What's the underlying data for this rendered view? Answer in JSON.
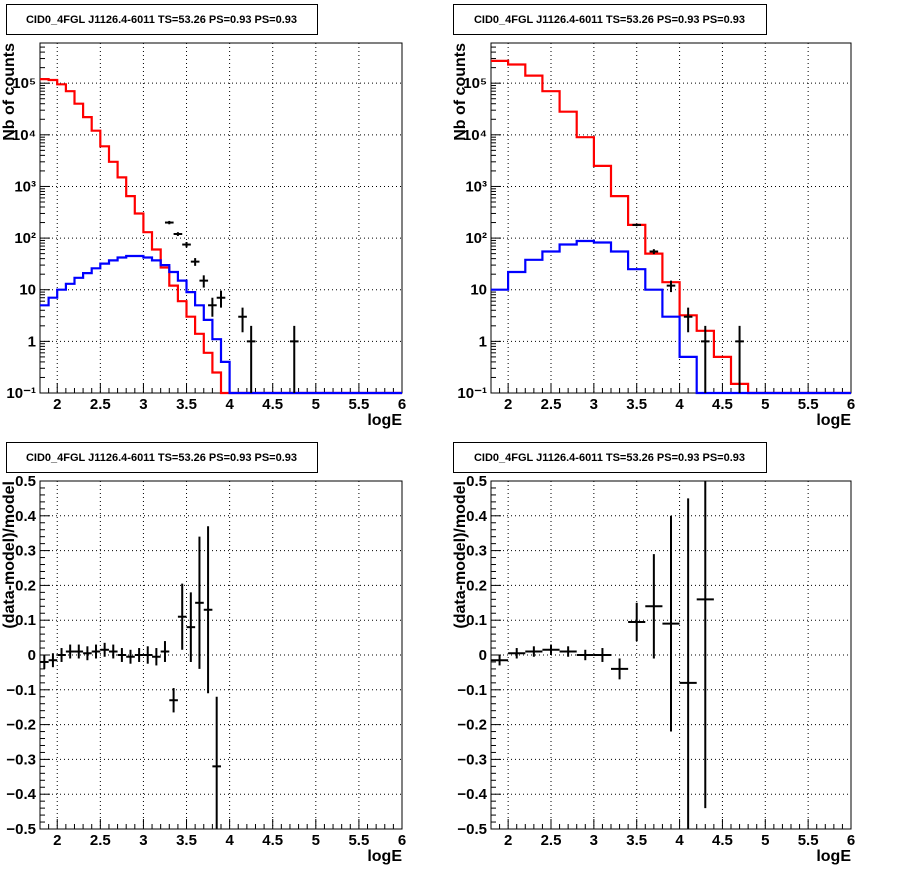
{
  "chart_data": [
    {
      "type": "line",
      "title": "CID0_4FGL J1126.4-6011 TS=53.26 PS=0.93 PS=0.93",
      "xlabel": "logE",
      "ylabel": "Nb of counts",
      "xlim": [
        1.8,
        6.0
      ],
      "ylim": [
        0.1,
        600000
      ],
      "log_y": true,
      "grid": true,
      "x_ticks": [
        "2",
        "2.5",
        "3",
        "3.5",
        "4",
        "4.5",
        "5",
        "5.5",
        "6"
      ],
      "y_ticks": [
        "10⁻¹",
        "1",
        "10",
        "10²",
        "10³",
        "10⁴",
        "10⁵"
      ],
      "bin_edges": [
        1.8,
        1.9,
        2.0,
        2.1,
        2.2,
        2.3,
        2.4,
        2.5,
        2.6,
        2.7,
        2.8,
        2.9,
        3.0,
        3.1,
        3.2,
        3.3,
        3.4,
        3.5,
        3.6,
        3.7,
        3.8,
        3.9,
        4.0,
        4.1,
        4.2,
        4.3,
        4.4,
        4.5,
        4.6,
        4.7,
        4.8,
        4.9,
        5.0,
        5.1,
        5.2,
        5.3,
        5.4,
        5.5,
        5.6,
        5.7,
        5.8,
        5.9,
        6.0
      ],
      "series": [
        {
          "color": "#ff0000",
          "values": [
            120000,
            115000,
            95000,
            70000,
            40000,
            22000,
            12000,
            6000,
            3000,
            1500,
            650,
            300,
            130,
            60,
            27,
            12,
            6,
            3,
            1.4,
            0.6,
            0.25,
            0.1,
            0.1,
            0.1,
            0.1,
            0.1,
            0.1,
            0.1,
            0.1,
            0.1,
            0.1,
            0.1,
            0.1,
            0.1,
            0.1,
            0.1,
            0.1,
            0.1,
            0.1,
            0.1,
            0.1,
            0.1
          ]
        },
        {
          "color": "#0000ff",
          "values": [
            5,
            7,
            10,
            13,
            17,
            21,
            26,
            32,
            37,
            42,
            45,
            45,
            42,
            37,
            30,
            22,
            15,
            9,
            5,
            2.6,
            1.1,
            0.4,
            0.1,
            0.1,
            0.1,
            0.1,
            0.1,
            0.1,
            0.1,
            0.1,
            0.1,
            0.1,
            0.1,
            0.1,
            0.1,
            0.1,
            0.1,
            0.1,
            0.1,
            0.1,
            0.1,
            0.1
          ]
        }
      ],
      "points": [
        {
          "x": 3.3,
          "y": 200,
          "lo": 185,
          "hi": 215
        },
        {
          "x": 3.4,
          "y": 120,
          "lo": 110,
          "hi": 130
        },
        {
          "x": 3.5,
          "y": 75,
          "lo": 66,
          "hi": 84
        },
        {
          "x": 3.6,
          "y": 35,
          "lo": 29,
          "hi": 41
        },
        {
          "x": 3.7,
          "y": 15,
          "lo": 11,
          "hi": 19
        },
        {
          "x": 3.8,
          "y": 5,
          "lo": 3,
          "hi": 7
        },
        {
          "x": 3.9,
          "y": 7,
          "lo": 4.5,
          "hi": 9.6
        },
        {
          "x": 4.15,
          "y": 3,
          "lo": 1.5,
          "hi": 4.5
        },
        {
          "x": 4.25,
          "y": 1,
          "lo": 0.1,
          "hi": 2
        },
        {
          "x": 4.75,
          "y": 1,
          "lo": 0.1,
          "hi": 2
        }
      ]
    },
    {
      "type": "line",
      "title": "CID0_4FGL J1126.4-6011 TS=53.26 PS=0.93 PS=0.93",
      "xlabel": "logE",
      "ylabel": "Nb of counts",
      "xlim": [
        1.8,
        6.0
      ],
      "ylim": [
        0.1,
        600000
      ],
      "log_y": true,
      "grid": true,
      "x_ticks": [
        "2",
        "2.5",
        "3",
        "3.5",
        "4",
        "4.5",
        "5",
        "5.5",
        "6"
      ],
      "y_ticks": [
        "10⁻¹",
        "1",
        "10",
        "10²",
        "10³",
        "10⁴",
        "10⁵"
      ],
      "bin_edges": [
        1.8,
        2.0,
        2.2,
        2.4,
        2.6,
        2.8,
        3.0,
        3.2,
        3.4,
        3.6,
        3.8,
        4.0,
        4.2,
        4.4,
        4.6,
        4.8,
        5.0,
        5.2,
        5.4,
        5.6,
        5.8,
        6.0
      ],
      "series": [
        {
          "color": "#ff0000",
          "values": [
            270000,
            230000,
            140000,
            70000,
            28000,
            9000,
            2500,
            650,
            180,
            50,
            14,
            3.2,
            1.6,
            0.5,
            0.15,
            0.1,
            0.1,
            0.1,
            0.1,
            0.1,
            0.1
          ]
        },
        {
          "color": "#0000ff",
          "values": [
            10,
            22,
            38,
            55,
            75,
            88,
            82,
            55,
            25,
            10,
            3,
            0.5,
            0.1,
            0.1,
            0.1,
            0.1,
            0.1,
            0.1,
            0.1,
            0.1,
            0.1
          ]
        }
      ],
      "points": [
        {
          "x": 3.5,
          "y": 180,
          "lo": 170,
          "hi": 190
        },
        {
          "x": 3.7,
          "y": 55,
          "lo": 49,
          "hi": 61
        },
        {
          "x": 3.9,
          "y": 12,
          "lo": 9,
          "hi": 15
        },
        {
          "x": 4.1,
          "y": 3,
          "lo": 1.5,
          "hi": 4.5
        },
        {
          "x": 4.3,
          "y": 1,
          "lo": 0.1,
          "hi": 2
        },
        {
          "x": 4.7,
          "y": 1,
          "lo": 0.1,
          "hi": 2
        }
      ]
    },
    {
      "type": "scatter",
      "title": "CID0_4FGL J1126.4-6011 TS=53.26 PS=0.93 PS=0.93",
      "xlabel": "logE",
      "ylabel": "(data-model)/model",
      "xlim": [
        1.8,
        6.0
      ],
      "ylim": [
        -0.5,
        0.5
      ],
      "grid": true,
      "x_ticks": [
        "2",
        "2.5",
        "3",
        "3.5",
        "4",
        "4.5",
        "5",
        "5.5",
        "6"
      ],
      "y_ticks": [
        "−0.5",
        "−0.4",
        "−0.3",
        "−0.2",
        "−0.1",
        "0",
        "0.1",
        "0.2",
        "0.3",
        "0.4",
        "0.5"
      ],
      "xerr": 0.05,
      "points": [
        {
          "x": 1.85,
          "y": -0.02,
          "e": 0.02
        },
        {
          "x": 1.95,
          "y": -0.015,
          "e": 0.02
        },
        {
          "x": 2.05,
          "y": 0.0,
          "e": 0.02
        },
        {
          "x": 2.15,
          "y": 0.01,
          "e": 0.02
        },
        {
          "x": 2.25,
          "y": 0.01,
          "e": 0.02
        },
        {
          "x": 2.35,
          "y": 0.005,
          "e": 0.02
        },
        {
          "x": 2.45,
          "y": 0.01,
          "e": 0.02
        },
        {
          "x": 2.55,
          "y": 0.015,
          "e": 0.02
        },
        {
          "x": 2.65,
          "y": 0.01,
          "e": 0.02
        },
        {
          "x": 2.75,
          "y": 0.0,
          "e": 0.02
        },
        {
          "x": 2.85,
          "y": -0.005,
          "e": 0.02
        },
        {
          "x": 2.95,
          "y": 0.0,
          "e": 0.02
        },
        {
          "x": 3.05,
          "y": 0.0,
          "e": 0.025
        },
        {
          "x": 3.15,
          "y": -0.005,
          "e": 0.025
        },
        {
          "x": 3.25,
          "y": 0.01,
          "e": 0.03
        },
        {
          "x": 3.35,
          "y": -0.13,
          "e": 0.035
        },
        {
          "x": 3.45,
          "y": 0.11,
          "e": 0.095
        },
        {
          "x": 3.55,
          "y": 0.08,
          "e": 0.1
        },
        {
          "x": 3.65,
          "y": 0.15,
          "e": 0.19
        },
        {
          "x": 3.75,
          "y": 0.13,
          "e": 0.24
        },
        {
          "x": 3.85,
          "y": -0.32,
          "e": 0.2
        }
      ]
    },
    {
      "type": "scatter",
      "title": "CID0_4FGL J1126.4-6011 TS=53.26 PS=0.93 PS=0.93",
      "xlabel": "logE",
      "ylabel": "(data-model)/model",
      "xlim": [
        1.8,
        6.0
      ],
      "ylim": [
        -0.5,
        0.5
      ],
      "grid": true,
      "x_ticks": [
        "2",
        "2.5",
        "3",
        "3.5",
        "4",
        "4.5",
        "5",
        "5.5",
        "6"
      ],
      "y_ticks": [
        "−0.5",
        "−0.4",
        "−0.3",
        "−0.2",
        "−0.1",
        "0",
        "0.1",
        "0.2",
        "0.3",
        "0.4",
        "0.5"
      ],
      "xerr": 0.1,
      "points": [
        {
          "x": 1.9,
          "y": -0.015,
          "e": 0.015
        },
        {
          "x": 2.1,
          "y": 0.005,
          "e": 0.015
        },
        {
          "x": 2.3,
          "y": 0.01,
          "e": 0.015
        },
        {
          "x": 2.5,
          "y": 0.015,
          "e": 0.015
        },
        {
          "x": 2.7,
          "y": 0.01,
          "e": 0.015
        },
        {
          "x": 2.9,
          "y": 0.0,
          "e": 0.015
        },
        {
          "x": 3.1,
          "y": 0.0,
          "e": 0.02
        },
        {
          "x": 3.3,
          "y": -0.04,
          "e": 0.03
        },
        {
          "x": 3.5,
          "y": 0.095,
          "e": 0.055
        },
        {
          "x": 3.7,
          "y": 0.14,
          "e": 0.15
        },
        {
          "x": 3.9,
          "y": 0.09,
          "e": 0.31
        },
        {
          "x": 4.1,
          "y": -0.08,
          "e": 0.53
        },
        {
          "x": 4.3,
          "y": 0.16,
          "e": 0.6
        }
      ]
    }
  ]
}
